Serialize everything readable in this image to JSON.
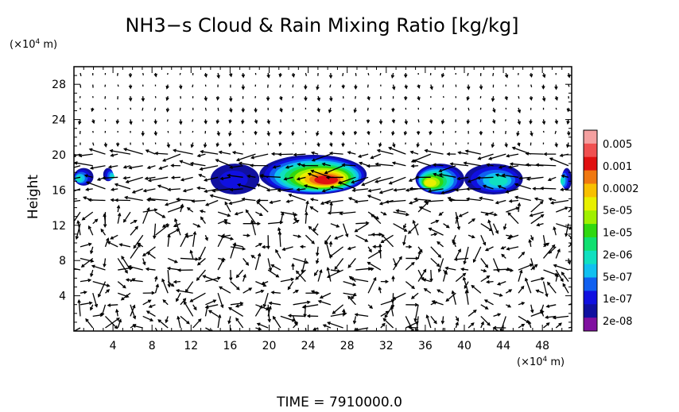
{
  "chart_data": {
    "type": "heatmap",
    "title": "NH3−s Cloud & Rain Mixing Ratio [kg/kg]",
    "ylabel": "Height",
    "x_unit_label": "(×10",
    "x_unit_exp": "4",
    "x_unit_suffix": " m)",
    "y_unit_label": "(×10",
    "y_unit_exp": "4",
    "y_unit_suffix": " m)",
    "xlim": [
      0,
      51
    ],
    "ylim": [
      0,
      30
    ],
    "x_ticks": [
      "4",
      "8",
      "12",
      "16",
      "20",
      "24",
      "28",
      "32",
      "36",
      "40",
      "44",
      "48"
    ],
    "y_ticks": [
      "4",
      "8",
      "12",
      "16",
      "20",
      "24",
      "28"
    ],
    "colorbar": {
      "labels": [
        "0.005",
        "0.001",
        "0.0002",
        "5e-05",
        "1e-05",
        "2e-06",
        "5e-07",
        "1e-07",
        "2e-08"
      ],
      "colors": [
        "#f4a0a0",
        "#f05050",
        "#e01010",
        "#f07810",
        "#f8c000",
        "#e8f000",
        "#a0f000",
        "#30d810",
        "#10e070",
        "#10e0c0",
        "#10c0f0",
        "#1060f0",
        "#1010e0",
        "#1010a0",
        "#8010a0"
      ]
    },
    "cloud_regions": [
      {
        "x": [
          0,
          2
        ],
        "y": [
          16.5,
          18.5
        ],
        "peak": "2e-06"
      },
      {
        "x": [
          3,
          4
        ],
        "y": [
          17,
          18.5
        ],
        "peak": "2e-06"
      },
      {
        "x": [
          14,
          19
        ],
        "y": [
          15.5,
          19
        ],
        "peak": "1e-07"
      },
      {
        "x": [
          19,
          30
        ],
        "y": [
          15.5,
          20
        ],
        "peak": "0.001"
      },
      {
        "x": [
          35,
          40
        ],
        "y": [
          15.5,
          19
        ],
        "peak": "5e-05"
      },
      {
        "x": [
          40,
          46
        ],
        "y": [
          15.5,
          19
        ],
        "peak": "2e-06"
      },
      {
        "x": [
          50,
          51
        ],
        "y": [
          16,
          18.5
        ],
        "peak": "2e-06"
      }
    ],
    "vector_field": "wind vectors",
    "footer": "TIME  =  7910000.0"
  }
}
